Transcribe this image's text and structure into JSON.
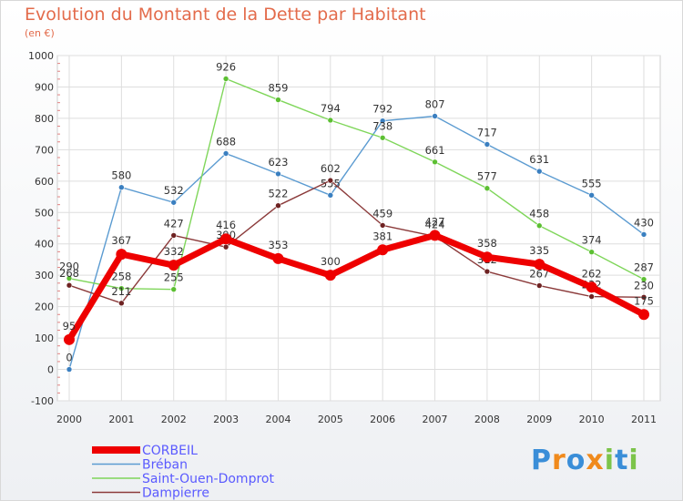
{
  "title": "Evolution du Montant de la Dette par Habitant",
  "subtitle": "(en €)",
  "brand": {
    "text": "Proxiti",
    "letters": [
      {
        "ch": "P",
        "color": "#3a8ed8"
      },
      {
        "ch": "r",
        "color": "#f08a1c"
      },
      {
        "ch": "o",
        "color": "#3a8ed8"
      },
      {
        "ch": "x",
        "color": "#f08a1c"
      },
      {
        "ch": "i",
        "color": "#7cc44a"
      },
      {
        "ch": "t",
        "color": "#3a8ed8"
      },
      {
        "ch": "i",
        "color": "#7cc44a"
      }
    ]
  },
  "chart_data": {
    "type": "line",
    "x": [
      "2000",
      "2001",
      "2002",
      "2003",
      "2004",
      "2005",
      "2006",
      "2007",
      "2008",
      "2009",
      "2010",
      "2011"
    ],
    "ylim": [
      -100,
      1000
    ],
    "yticks": [
      "-100",
      "0",
      "100",
      "200",
      "300",
      "400",
      "500",
      "600",
      "700",
      "800",
      "900",
      "1000"
    ],
    "grid": true,
    "legend_position": "bottom-left",
    "series": [
      {
        "name": "Bréban",
        "color": "#5b9bd1",
        "dot": "#3a7fc0",
        "values": [
          0,
          580,
          532,
          688,
          623,
          555,
          792,
          807,
          717,
          631,
          555,
          430
        ],
        "labels": [
          "0",
          "580",
          "532",
          "688",
          "623",
          "555",
          "792",
          "807",
          "717",
          "631",
          "555",
          "430"
        ]
      },
      {
        "name": "Saint-Ouen-Domprot",
        "color": "#7fd65a",
        "dot": "#5cbf32",
        "values": [
          290,
          258,
          255,
          926,
          859,
          794,
          738,
          661,
          577,
          458,
          374,
          287
        ],
        "labels": [
          "290",
          "258",
          "255",
          "926",
          "859",
          "794",
          "738",
          "661",
          "577",
          "458",
          "374",
          "287"
        ]
      },
      {
        "name": "Dampierre",
        "color": "#8b3a3a",
        "dot": "#6e2222",
        "values": [
          268,
          211,
          427,
          390,
          522,
          602,
          459,
          424,
          312,
          267,
          232,
          230
        ],
        "labels": [
          "268",
          "211",
          "427",
          "390",
          "522",
          "602",
          "459",
          "424",
          "312",
          "267",
          "232",
          "230"
        ]
      },
      {
        "name": "CORBEIL",
        "color": "#ee0000",
        "dot": "#ee0000",
        "values": [
          95,
          367,
          332,
          416,
          353,
          300,
          381,
          427,
          358,
          335,
          262,
          175
        ],
        "labels": [
          "95",
          "367",
          "332",
          "416",
          "353",
          "300",
          "381",
          "427",
          "358",
          "335",
          "262",
          "175"
        ]
      }
    ],
    "legend": [
      "CORBEIL",
      "Bréban",
      "Saint-Ouen-Domprot",
      "Dampierre"
    ]
  }
}
